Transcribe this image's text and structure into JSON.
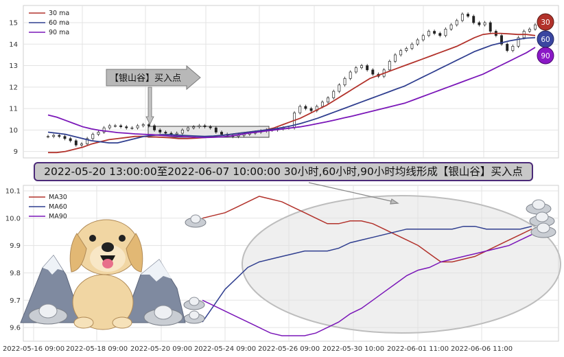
{
  "chart_data": [
    {
      "type": "candlestick+line",
      "ylim": [
        8.7,
        15.8
      ],
      "yticks": [
        9,
        10,
        11,
        12,
        13,
        14,
        15
      ],
      "grid": true,
      "legend_position": "top-left",
      "series": [
        {
          "name": "30 ma",
          "color": "#b2322b",
          "values": [
            8.95,
            8.95,
            9.0,
            9.1,
            9.2,
            9.35,
            9.45,
            9.55,
            9.6,
            9.65,
            9.7,
            9.7,
            9.68,
            9.66,
            9.64,
            9.6,
            9.6,
            9.62,
            9.65,
            9.7,
            9.75,
            9.8,
            9.85,
            9.9,
            9.95,
            10.0,
            10.1,
            10.25,
            10.4,
            10.55,
            10.75,
            10.95,
            11.15,
            11.4,
            11.65,
            11.9,
            12.15,
            12.4,
            12.55,
            12.7,
            12.85,
            13.0,
            13.15,
            13.3,
            13.45,
            13.6,
            13.75,
            13.9,
            14.1,
            14.3,
            14.45,
            14.5,
            14.5,
            14.48,
            14.45,
            14.45,
            14.4
          ]
        },
        {
          "name": "60 ma",
          "color": "#2f3e8f",
          "values": [
            9.9,
            9.85,
            9.8,
            9.7,
            9.6,
            9.5,
            9.45,
            9.4,
            9.4,
            9.5,
            9.6,
            9.7,
            9.75,
            9.78,
            9.78,
            9.76,
            9.74,
            9.72,
            9.7,
            9.72,
            9.75,
            9.8,
            9.85,
            9.9,
            9.95,
            10.0,
            10.05,
            10.12,
            10.2,
            10.3,
            10.42,
            10.55,
            10.7,
            10.85,
            11.0,
            11.15,
            11.3,
            11.45,
            11.6,
            11.75,
            11.9,
            12.05,
            12.25,
            12.45,
            12.65,
            12.85,
            13.05,
            13.25,
            13.45,
            13.65,
            13.8,
            13.95,
            14.05,
            14.15,
            14.22,
            14.28,
            14.3
          ]
        },
        {
          "name": "90 ma",
          "color": "#7a16b8",
          "values": [
            10.7,
            10.6,
            10.45,
            10.3,
            10.15,
            10.05,
            9.98,
            9.93,
            9.88,
            9.85,
            9.82,
            9.8,
            9.78,
            9.75,
            9.72,
            9.7,
            9.68,
            9.66,
            9.65,
            9.66,
            9.68,
            9.72,
            9.78,
            9.85,
            9.9,
            9.95,
            10.0,
            10.05,
            10.1,
            10.15,
            10.22,
            10.3,
            10.38,
            10.47,
            10.56,
            10.65,
            10.75,
            10.85,
            10.95,
            11.05,
            11.15,
            11.25,
            11.4,
            11.55,
            11.7,
            11.85,
            12.0,
            12.15,
            12.3,
            12.45,
            12.6,
            12.8,
            13.0,
            13.2,
            13.4,
            13.6,
            13.85
          ]
        }
      ],
      "candles": [
        9.7,
        9.75,
        9.7,
        9.6,
        9.5,
        9.3,
        9.35,
        9.6,
        9.8,
        9.9,
        10.1,
        10.2,
        10.2,
        10.15,
        10.1,
        10.1,
        10.2,
        10.25,
        10.2,
        10.0,
        9.9,
        9.85,
        9.8,
        9.85,
        10.0,
        10.1,
        10.15,
        10.2,
        10.15,
        10.1,
        9.9,
        9.8,
        9.75,
        9.7,
        9.75,
        9.8,
        9.85,
        9.9,
        9.95,
        10.0,
        10.0,
        10.05,
        10.1,
        10.1,
        10.8,
        11.1,
        11.0,
        10.9,
        11.1,
        11.3,
        11.5,
        11.8,
        12.1,
        12.4,
        12.7,
        12.9,
        13.0,
        12.8,
        12.6,
        12.5,
        12.8,
        13.2,
        13.5,
        13.7,
        13.8,
        14.0,
        14.2,
        14.4,
        14.6,
        14.5,
        14.4,
        14.7,
        14.9,
        15.1,
        15.4,
        15.3,
        15.0,
        14.9,
        15.0,
        14.6,
        14.4,
        14.0,
        13.7,
        13.9,
        14.3,
        14.6,
        14.7,
        14.9
      ],
      "annotations": [
        {
          "text": "【银山谷】买入点",
          "kind": "arrow-callout"
        }
      ],
      "badges": [
        "30",
        "60",
        "90"
      ]
    },
    {
      "type": "line",
      "ylim": [
        9.55,
        10.12
      ],
      "yticks": [
        "9.6",
        "9.7",
        "9.8",
        "9.9",
        "10.0",
        "10.1"
      ],
      "xticks": [
        "2022-05-16 09:00",
        "2022-05-18 09:00",
        "2022-05-20 09:00",
        "2022-05-24 09:00",
        "2022-05-26 09:00",
        "2022-05-30 10:00",
        "2022-06-01 11:00",
        "2022-06-06 11:00"
      ],
      "grid": true,
      "legend_position": "top-left",
      "series": [
        {
          "name": "MA30",
          "color": "#b2322b",
          "values": [
            10.0,
            10.01,
            10.02,
            10.04,
            10.06,
            10.08,
            10.07,
            10.06,
            10.04,
            10.02,
            10.0,
            9.98,
            9.98,
            9.99,
            9.99,
            9.98,
            9.96,
            9.94,
            9.92,
            9.9,
            9.87,
            9.84,
            9.84,
            9.85,
            9.86,
            9.88,
            9.9,
            9.92,
            9.94,
            9.96
          ]
        },
        {
          "name": "MA60",
          "color": "#2f3e8f",
          "values": [
            9.62,
            9.68,
            9.74,
            9.78,
            9.82,
            9.84,
            9.85,
            9.86,
            9.87,
            9.88,
            9.88,
            9.88,
            9.89,
            9.91,
            9.92,
            9.93,
            9.94,
            9.95,
            9.96,
            9.96,
            9.96,
            9.96,
            9.96,
            9.97,
            9.97,
            9.96,
            9.96,
            9.96,
            9.96,
            9.97
          ]
        },
        {
          "name": "MA90",
          "color": "#7a16b8",
          "values": [
            9.7,
            9.68,
            9.66,
            9.64,
            9.62,
            9.6,
            9.58,
            9.57,
            9.57,
            9.57,
            9.58,
            9.6,
            9.62,
            9.65,
            9.67,
            9.7,
            9.73,
            9.76,
            9.79,
            9.81,
            9.82,
            9.84,
            9.85,
            9.86,
            9.87,
            9.88,
            9.89,
            9.9,
            9.92,
            9.94
          ]
        }
      ]
    }
  ],
  "banner": {
    "text": "2022-05-20 13:00:00至2022-06-07 10:00:00 30小时,60小时,90小时均线形成【银山谷】买入点"
  }
}
